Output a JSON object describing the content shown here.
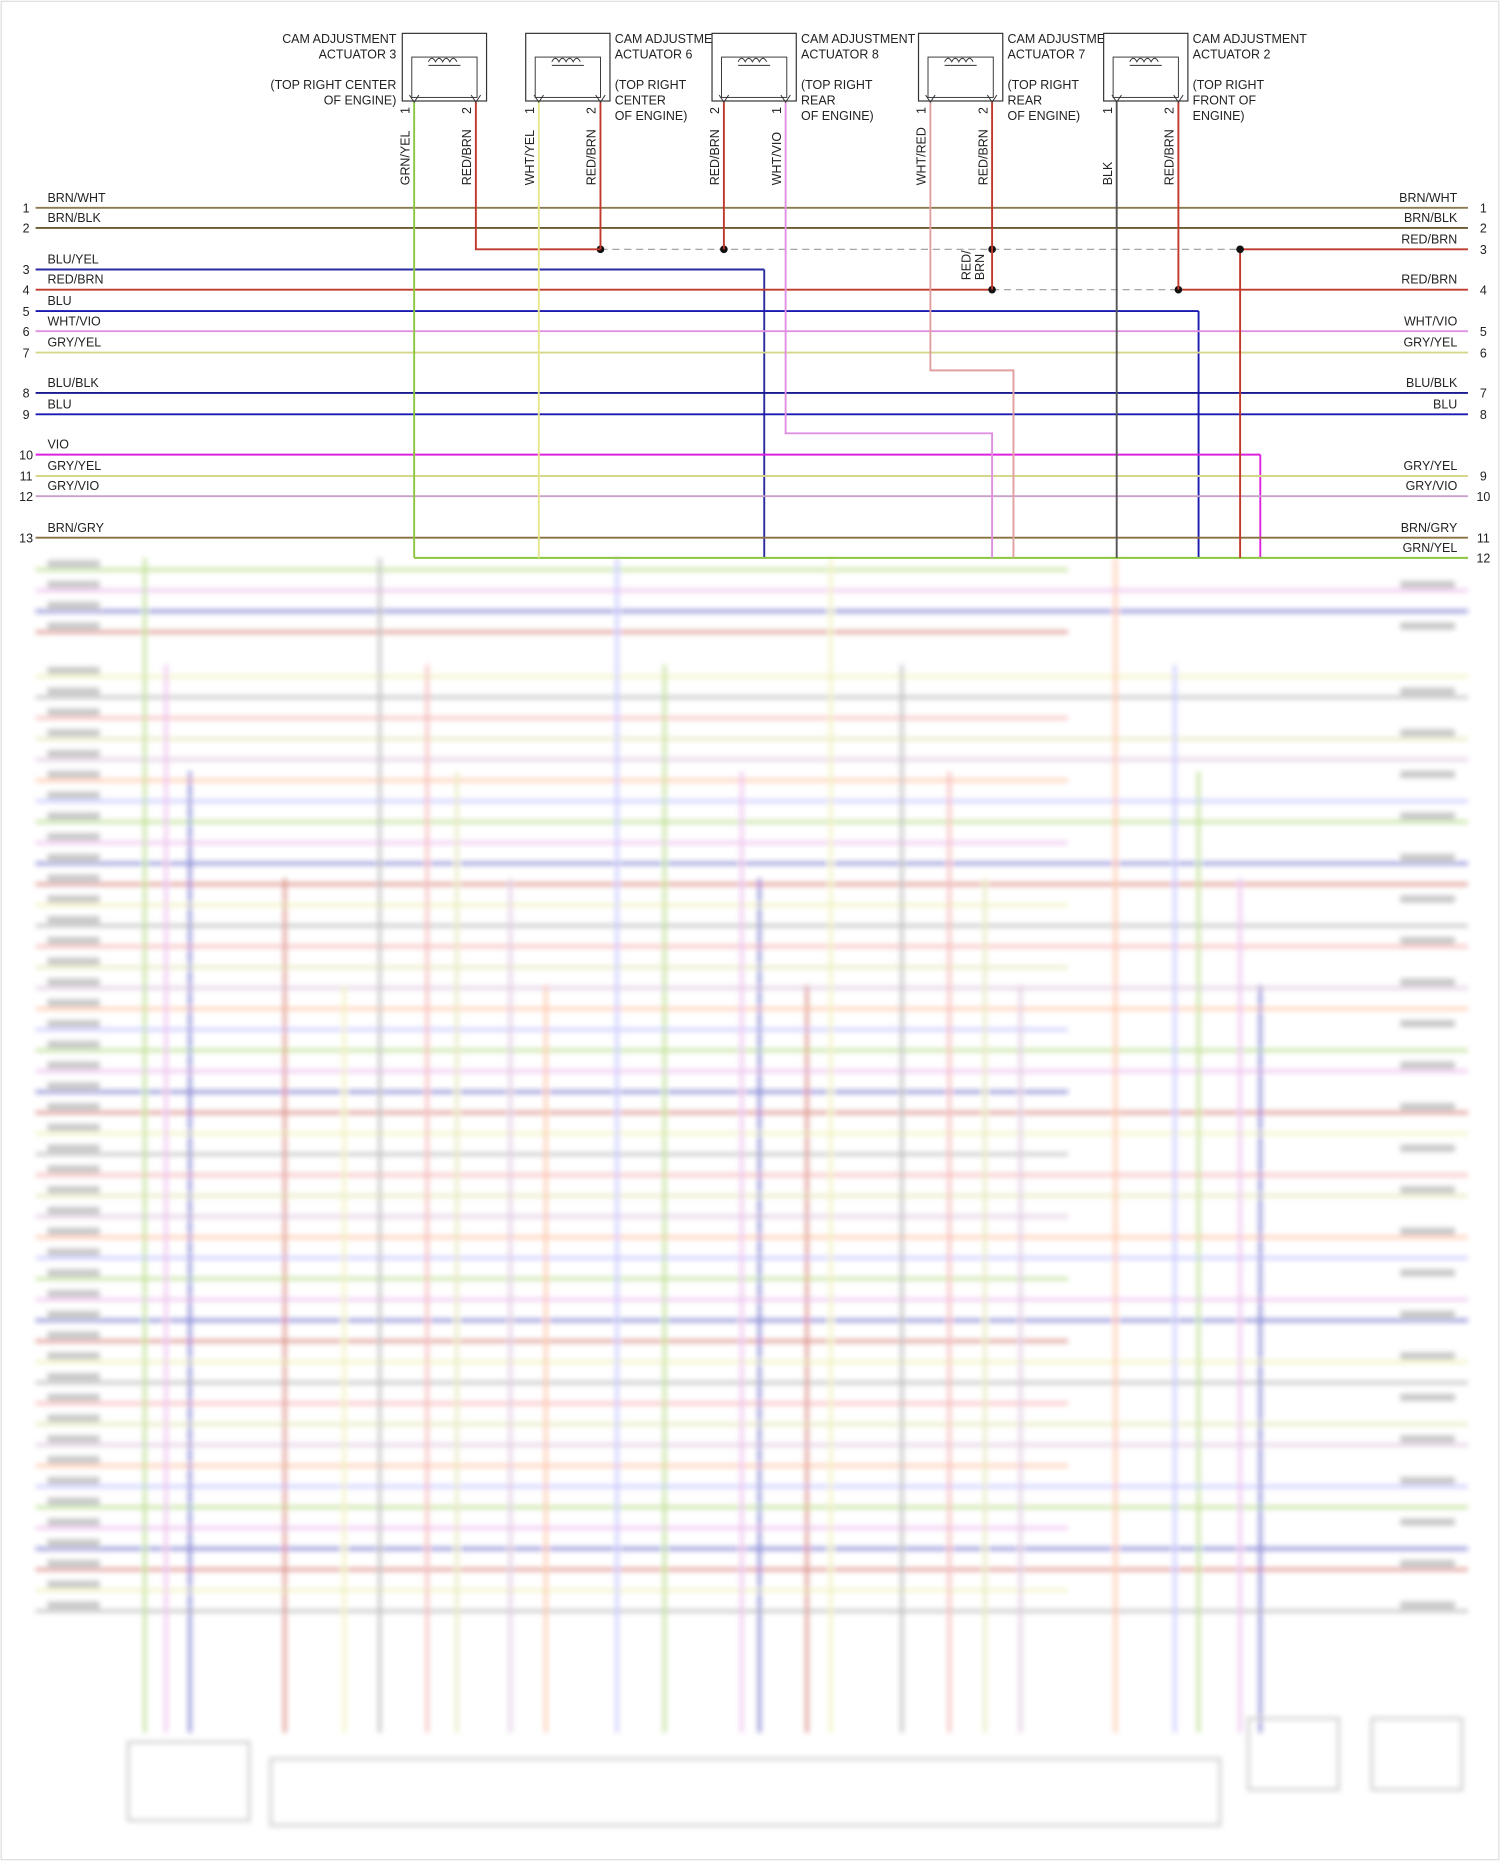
{
  "actuators": [
    {
      "title": [
        "CAM ADJUSTMENT",
        "ACTUATOR 3"
      ],
      "location": [
        "(TOP RIGHT CENTER",
        "OF ENGINE)"
      ],
      "pins": [
        {
          "num": "1",
          "wire": "GRN/YEL",
          "color": "#8cc63f"
        },
        {
          "num": "2",
          "wire": "RED/BRN",
          "color": "#c0392b"
        }
      ]
    },
    {
      "title": [
        "CAM ADJUSTMENT",
        "ACTUATOR 6"
      ],
      "location": [
        "(TOP RIGHT",
        "CENTER",
        "OF ENGINE)"
      ],
      "pins": [
        {
          "num": "1",
          "wire": "WHT/YEL",
          "color": "#e6e68a"
        },
        {
          "num": "2",
          "wire": "RED/BRN",
          "color": "#c0392b"
        }
      ]
    },
    {
      "title": [
        "CAM ADJUSTMENT",
        "ACTUATOR 8"
      ],
      "location": [
        "(TOP RIGHT",
        "REAR",
        "OF ENGINE)"
      ],
      "pins": [
        {
          "num": "2",
          "wire": "RED/BRN",
          "color": "#c0392b"
        },
        {
          "num": "1",
          "wire": "WHT/VIO",
          "color": "#e090e0"
        }
      ]
    },
    {
      "title": [
        "CAM ADJUSTMENT",
        "ACTUATOR 7"
      ],
      "location": [
        "(TOP RIGHT",
        "REAR",
        "OF ENGINE)"
      ],
      "pins": [
        {
          "num": "1",
          "wire": "WHT/RED",
          "color": "#e0a0a0"
        },
        {
          "num": "2",
          "wire": "RED/BRN",
          "color": "#c0392b"
        }
      ]
    },
    {
      "title": [
        "CAM ADJUSTMENT",
        "ACTUATOR 2"
      ],
      "location": [
        "(TOP RIGHT",
        "FRONT OF",
        "ENGINE)"
      ],
      "pins": [
        {
          "num": "1",
          "wire": "BLK",
          "color": "#555555"
        },
        {
          "num": "2",
          "wire": "RED/BRN",
          "color": "#c0392b"
        }
      ]
    }
  ],
  "splice_label": [
    "RED/",
    "BRN"
  ],
  "left_wires": [
    {
      "num": "1",
      "label": "BRN/WHT",
      "color": "#8a7a50"
    },
    {
      "num": "2",
      "label": "BRN/BLK",
      "color": "#6b5a30"
    },
    {
      "num": "3",
      "label": "BLU/YEL",
      "color": "#2a2aa0"
    },
    {
      "num": "4",
      "label": "RED/BRN",
      "color": "#c0392b"
    },
    {
      "num": "5",
      "label": "BLU",
      "color": "#1a1ab0"
    },
    {
      "num": "6",
      "label": "WHT/VIO",
      "color": "#e090e0"
    },
    {
      "num": "7",
      "label": "GRY/YEL",
      "color": "#d6d68a"
    },
    {
      "num": "8",
      "label": "BLU/BLK",
      "color": "#1a1a90"
    },
    {
      "num": "9",
      "label": "BLU",
      "color": "#1a1ab0"
    },
    {
      "num": "10",
      "label": "VIO",
      "color": "#dd22dd"
    },
    {
      "num": "11",
      "label": "GRY/YEL",
      "color": "#d6d68a"
    },
    {
      "num": "12",
      "label": "GRY/VIO",
      "color": "#c8a0c8"
    },
    {
      "num": "13",
      "label": "BRN/GRY",
      "color": "#8a7040"
    }
  ],
  "right_wires": [
    {
      "label": "BRN/WHT",
      "num": "1",
      "color": "#8a7a50"
    },
    {
      "label": "BRN/BLK",
      "num": "2",
      "color": "#6b5a30"
    },
    {
      "label": "RED/BRN",
      "num": "3",
      "color": "#c0392b"
    },
    {
      "label": "RED/BRN",
      "num": "4",
      "color": "#c0392b"
    },
    {
      "label": "WHT/VIO",
      "num": "5",
      "color": "#e090e0"
    },
    {
      "label": "GRY/YEL",
      "num": "6",
      "color": "#d6d68a"
    },
    {
      "label": "BLU/BLK",
      "num": "7",
      "color": "#1a1a90"
    },
    {
      "label": "BLU",
      "num": "8",
      "color": "#1a1ab0"
    },
    {
      "label": "GRY/YEL",
      "num": "9",
      "color": "#d6d68a"
    },
    {
      "label": "GRY/VIO",
      "num": "10",
      "color": "#c8a0c8"
    },
    {
      "label": "BRN/GRY",
      "num": "11",
      "color": "#8a7040"
    },
    {
      "label": "GRN/YEL",
      "num": "12",
      "color": "#8cc63f"
    }
  ]
}
